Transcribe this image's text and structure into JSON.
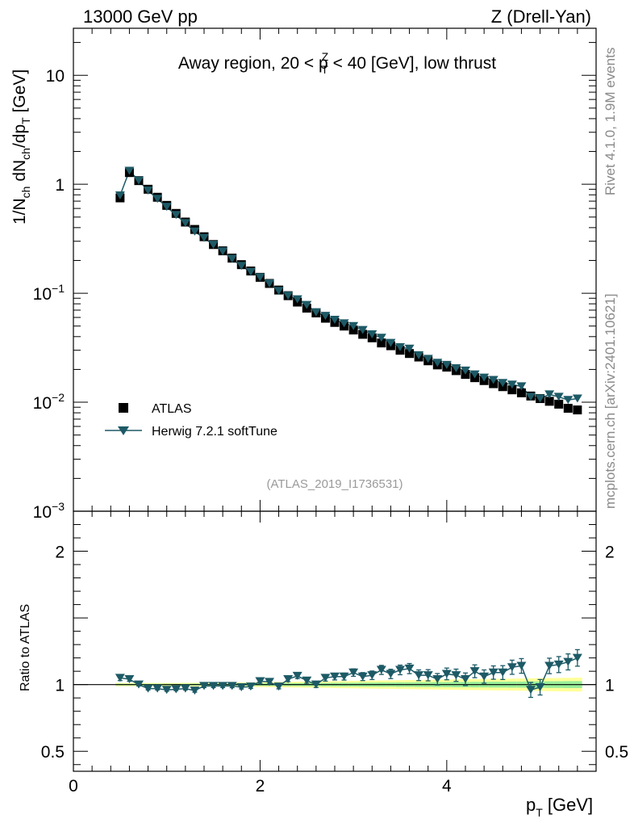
{
  "header": {
    "energy_label": "13000 GeV pp",
    "process_label": "Z (Drell-Yan)"
  },
  "side": {
    "rivet_label": "Rivet 4.1.0,  1.9M events",
    "source_label": "mcplots.cern.ch [arXiv:2401.10621]"
  },
  "colors": {
    "mc": "#1d5a66",
    "data": "#000000",
    "band_outer": "#ffff99",
    "band_inner": "#99ee99"
  },
  "chart_data": {
    "type": "scatter",
    "title": "Away region, 20 < p_T^Z < 40 [GeV], low thrust",
    "title_parts": {
      "pre": "Away region, 20 < p",
      "sup": "Z",
      "sub": "T",
      "post": " < 40 [GeV], low thrust"
    },
    "analysis_id": "(ATLAS_2019_I1736531)",
    "xlabel": "p_T [GeV]",
    "ylabel": "1/N_ch dN_ch/dp_T [GeV]",
    "ratio_ylabel": "Ratio to ATLAS",
    "xlim": [
      0,
      5.6
    ],
    "ylim": [
      0.001,
      27
    ],
    "yscale": "log",
    "ratio_ylim": [
      0.35,
      2.3
    ],
    "x_ticks": [
      "0",
      "2",
      "4"
    ],
    "y_ticks": [
      "10",
      "1",
      "10^-1",
      "10^-2",
      "10^-3"
    ],
    "ratio_ticks": [
      "2",
      "1",
      "0.5"
    ],
    "legend": [
      "ATLAS",
      "Herwig 7.2.1 softTune"
    ],
    "x": [
      0.5,
      0.6,
      0.7,
      0.8,
      0.9,
      1.0,
      1.1,
      1.2,
      1.3,
      1.4,
      1.5,
      1.6,
      1.7,
      1.8,
      1.9,
      2.0,
      2.1,
      2.2,
      2.3,
      2.4,
      2.5,
      2.6,
      2.7,
      2.8,
      2.9,
      3.0,
      3.1,
      3.2,
      3.3,
      3.4,
      3.5,
      3.6,
      3.7,
      3.8,
      3.9,
      4.0,
      4.1,
      4.2,
      4.3,
      4.4,
      4.5,
      4.6,
      4.7,
      4.8,
      4.9,
      5.0,
      5.1,
      5.2,
      5.3,
      5.4
    ],
    "series": [
      {
        "name": "ATLAS",
        "values": [
          0.75,
          1.28,
          1.08,
          0.9,
          0.76,
          0.64,
          0.54,
          0.45,
          0.385,
          0.33,
          0.28,
          0.245,
          0.21,
          0.183,
          0.16,
          0.14,
          0.123,
          0.107,
          0.095,
          0.083,
          0.073,
          0.066,
          0.059,
          0.054,
          0.05,
          0.046,
          0.042,
          0.039,
          0.035,
          0.033,
          0.03,
          0.028,
          0.026,
          0.024,
          0.022,
          0.021,
          0.0195,
          0.018,
          0.0168,
          0.0158,
          0.0148,
          0.0139,
          0.013,
          0.0122,
          0.0114,
          0.0108,
          0.0102,
          0.0096,
          0.0088,
          0.0085
        ]
      },
      {
        "name": "Herwig 7.2.1 softTune",
        "values": [
          0.79,
          1.33,
          1.08,
          0.875,
          0.735,
          0.62,
          0.522,
          0.44,
          0.368,
          0.322,
          0.278,
          0.242,
          0.207,
          0.178,
          0.157,
          0.14,
          0.123,
          0.105,
          0.095,
          0.088,
          0.078,
          0.067,
          0.062,
          0.057,
          0.053,
          0.05,
          0.046,
          0.042,
          0.039,
          0.035,
          0.032,
          0.031,
          0.027,
          0.025,
          0.023,
          0.022,
          0.0205,
          0.0195,
          0.018,
          0.0168,
          0.016,
          0.015,
          0.0145,
          0.014,
          0.0112,
          0.0108,
          0.0118,
          0.0112,
          0.0105,
          0.0108
        ]
      }
    ],
    "ratio": [
      1.05,
      1.04,
      1.0,
      0.97,
      0.97,
      0.96,
      0.965,
      0.97,
      0.955,
      0.99,
      0.99,
      0.99,
      0.99,
      0.98,
      0.985,
      1.025,
      1.02,
      0.985,
      1.04,
      1.065,
      1.03,
      1.0,
      1.05,
      1.06,
      1.06,
      1.09,
      1.06,
      1.07,
      1.11,
      1.08,
      1.11,
      1.12,
      1.07,
      1.07,
      1.04,
      1.08,
      1.07,
      1.04,
      1.1,
      1.06,
      1.09,
      1.09,
      1.13,
      1.14,
      0.96,
      0.98,
      1.14,
      1.15,
      1.17,
      1.2
    ],
    "ratio_err": [
      0.02,
      0.015,
      0.01,
      0.01,
      0.01,
      0.01,
      0.01,
      0.01,
      0.012,
      0.012,
      0.012,
      0.012,
      0.013,
      0.013,
      0.014,
      0.015,
      0.016,
      0.017,
      0.018,
      0.02,
      0.02,
      0.022,
      0.024,
      0.025,
      0.026,
      0.028,
      0.03,
      0.032,
      0.034,
      0.035,
      0.036,
      0.038,
      0.04,
      0.042,
      0.043,
      0.044,
      0.046,
      0.047,
      0.048,
      0.05,
      0.05,
      0.052,
      0.053,
      0.055,
      0.056,
      0.058,
      0.058,
      0.06,
      0.06,
      0.062
    ],
    "band_inner_halfwidth": [
      0.006,
      0.006,
      0.006,
      0.006,
      0.006,
      0.006,
      0.006,
      0.006,
      0.007,
      0.007,
      0.007,
      0.008,
      0.008,
      0.008,
      0.009,
      0.009,
      0.01,
      0.01,
      0.011,
      0.011,
      0.012,
      0.012,
      0.013,
      0.013,
      0.014,
      0.014,
      0.015,
      0.015,
      0.016,
      0.016,
      0.017,
      0.017,
      0.018,
      0.018,
      0.019,
      0.019,
      0.02,
      0.02,
      0.021,
      0.021,
      0.022,
      0.022,
      0.023,
      0.023,
      0.024,
      0.024,
      0.025,
      0.025,
      0.026,
      0.026
    ],
    "band_outer_halfwidth": [
      0.012,
      0.012,
      0.012,
      0.012,
      0.012,
      0.012,
      0.012,
      0.013,
      0.013,
      0.014,
      0.014,
      0.015,
      0.015,
      0.016,
      0.017,
      0.018,
      0.019,
      0.02,
      0.021,
      0.022,
      0.023,
      0.024,
      0.025,
      0.026,
      0.027,
      0.028,
      0.029,
      0.03,
      0.031,
      0.032,
      0.033,
      0.034,
      0.035,
      0.036,
      0.037,
      0.038,
      0.039,
      0.04,
      0.041,
      0.042,
      0.043,
      0.044,
      0.045,
      0.046,
      0.047,
      0.048,
      0.049,
      0.05,
      0.051,
      0.052
    ]
  }
}
